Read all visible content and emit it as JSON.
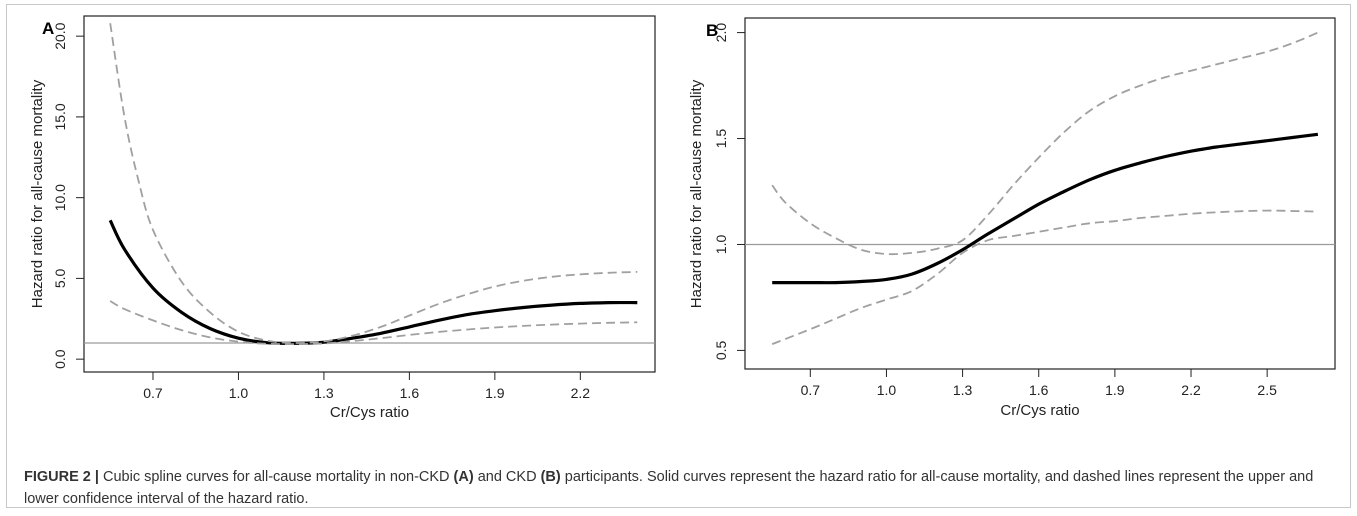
{
  "caption": {
    "label": "FIGURE 2 |",
    "part1": " Cubic spline curves for all-cause mortality in non-CKD ",
    "ref_a": "(A)",
    "part2": " and CKD ",
    "ref_b": "(B)",
    "part3": " participants. Solid curves represent the hazard ratio for all-cause mortality, and dashed lines represent the upper and lower confidence interval of the hazard ratio."
  },
  "chart_data": [
    {
      "panel": "A",
      "type": "line",
      "xlabel": "Cr/Cys ratio",
      "ylabel": "Hazard ratio for all-cause  mortality",
      "xlim": [
        0.5,
        2.42
      ],
      "ylim": [
        -0.3,
        21.0
      ],
      "xticks": [
        0.7,
        1.0,
        1.3,
        1.6,
        1.9,
        2.2
      ],
      "xtick_labels": [
        "0.7",
        "1.0",
        "1.3",
        "1.6",
        "1.9",
        "2.2"
      ],
      "yticks": [
        0,
        5,
        10,
        15,
        20
      ],
      "ytick_labels": [
        "0.0",
        "5.0",
        "10.0",
        "15.0",
        "20.0"
      ],
      "reference_line": 1.0,
      "series": [
        {
          "role": "hazard-ratio",
          "style": "solid",
          "x": [
            0.55,
            0.6,
            0.7,
            0.8,
            0.9,
            1.0,
            1.1,
            1.2,
            1.3,
            1.4,
            1.5,
            1.6,
            1.7,
            1.8,
            1.9,
            2.0,
            2.1,
            2.2,
            2.3,
            2.4
          ],
          "y": [
            8.6,
            6.8,
            4.4,
            2.9,
            1.9,
            1.3,
            1.02,
            0.98,
            1.05,
            1.3,
            1.6,
            2.0,
            2.4,
            2.75,
            3.0,
            3.2,
            3.35,
            3.45,
            3.5,
            3.5
          ]
        },
        {
          "role": "upper-ci",
          "style": "dashed",
          "x": [
            0.55,
            0.6,
            0.65,
            0.7,
            0.8,
            0.9,
            1.0,
            1.1,
            1.2,
            1.3,
            1.4,
            1.5,
            1.6,
            1.7,
            1.8,
            1.9,
            2.0,
            2.1,
            2.2,
            2.3,
            2.4
          ],
          "y": [
            20.8,
            15.0,
            11.0,
            8.0,
            4.8,
            2.9,
            1.7,
            1.15,
            1.0,
            1.1,
            1.45,
            2.0,
            2.7,
            3.4,
            4.0,
            4.5,
            4.85,
            5.1,
            5.25,
            5.35,
            5.4
          ]
        },
        {
          "role": "lower-ci",
          "style": "dashed",
          "x": [
            0.55,
            0.6,
            0.7,
            0.8,
            0.9,
            1.0,
            1.1,
            1.2,
            1.3,
            1.4,
            1.5,
            1.6,
            1.7,
            1.8,
            1.9,
            2.0,
            2.1,
            2.2,
            2.3,
            2.4
          ],
          "y": [
            3.6,
            3.1,
            2.4,
            1.8,
            1.35,
            1.08,
            0.95,
            0.93,
            0.97,
            1.12,
            1.3,
            1.5,
            1.68,
            1.83,
            1.96,
            2.06,
            2.14,
            2.2,
            2.25,
            2.28
          ]
        }
      ]
    },
    {
      "panel": "B",
      "type": "line",
      "xlabel": "Cr/Cys ratio",
      "ylabel": "Hazard ratio for all-cause mortality",
      "xlim": [
        0.49,
        2.72
      ],
      "ylim": [
        0.45,
        2.05
      ],
      "xticks": [
        0.7,
        1.0,
        1.3,
        1.6,
        1.9,
        2.2,
        2.5
      ],
      "xtick_labels": [
        "0.7",
        "1.0",
        "1.3",
        "1.6",
        "1.9",
        "2.2",
        "2.5"
      ],
      "yticks": [
        0.5,
        1.0,
        1.5,
        2.0
      ],
      "ytick_labels": [
        "0.5",
        "1.0",
        "1.5",
        "2.0"
      ],
      "reference_line": 1.0,
      "series": [
        {
          "role": "hazard-ratio",
          "style": "solid",
          "x": [
            0.55,
            0.7,
            0.8,
            0.9,
            1.0,
            1.1,
            1.2,
            1.3,
            1.4,
            1.5,
            1.6,
            1.7,
            1.8,
            1.9,
            2.0,
            2.1,
            2.2,
            2.3,
            2.4,
            2.5,
            2.6,
            2.7
          ],
          "y": [
            0.82,
            0.82,
            0.82,
            0.825,
            0.835,
            0.86,
            0.91,
            0.975,
            1.05,
            1.12,
            1.19,
            1.25,
            1.305,
            1.35,
            1.385,
            1.415,
            1.44,
            1.46,
            1.475,
            1.49,
            1.505,
            1.52
          ]
        },
        {
          "role": "upper-ci",
          "style": "dashed",
          "x": [
            0.55,
            0.6,
            0.7,
            0.8,
            0.9,
            1.0,
            1.1,
            1.2,
            1.3,
            1.4,
            1.5,
            1.6,
            1.7,
            1.8,
            1.9,
            2.0,
            2.1,
            2.2,
            2.3,
            2.4,
            2.5,
            2.6,
            2.7
          ],
          "y": [
            1.28,
            1.2,
            1.1,
            1.03,
            0.975,
            0.955,
            0.96,
            0.98,
            1.02,
            1.14,
            1.28,
            1.41,
            1.53,
            1.63,
            1.7,
            1.75,
            1.79,
            1.82,
            1.85,
            1.88,
            1.91,
            1.95,
            2.0
          ]
        },
        {
          "role": "lower-ci",
          "style": "dashed",
          "x": [
            0.55,
            0.7,
            0.8,
            0.9,
            1.0,
            1.1,
            1.2,
            1.3,
            1.4,
            1.5,
            1.6,
            1.7,
            1.8,
            1.9,
            2.0,
            2.1,
            2.2,
            2.3,
            2.4,
            2.5,
            2.6,
            2.7
          ],
          "y": [
            0.53,
            0.6,
            0.65,
            0.7,
            0.74,
            0.78,
            0.86,
            0.96,
            1.02,
            1.04,
            1.06,
            1.08,
            1.1,
            1.11,
            1.125,
            1.135,
            1.145,
            1.152,
            1.157,
            1.16,
            1.158,
            1.155
          ]
        }
      ]
    }
  ]
}
